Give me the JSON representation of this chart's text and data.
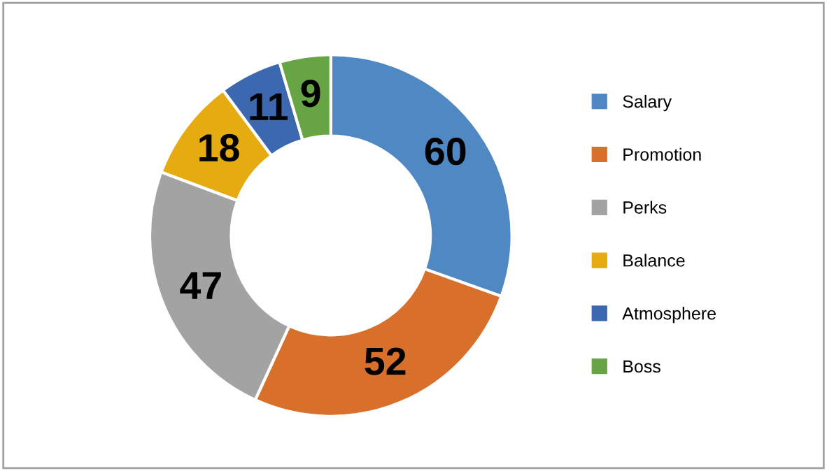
{
  "chart_data": {
    "type": "donut",
    "categories": [
      "Salary",
      "Promotion",
      "Perks",
      "Balance",
      "Atmosphere",
      "Boss"
    ],
    "values": [
      60,
      52,
      47,
      18,
      11,
      9
    ],
    "colors": [
      "#4f88c2",
      "#d8702c",
      "#a3a3a3",
      "#e6ab10",
      "#3c68af",
      "#67a443"
    ],
    "data_labels": true,
    "legend": "right"
  }
}
